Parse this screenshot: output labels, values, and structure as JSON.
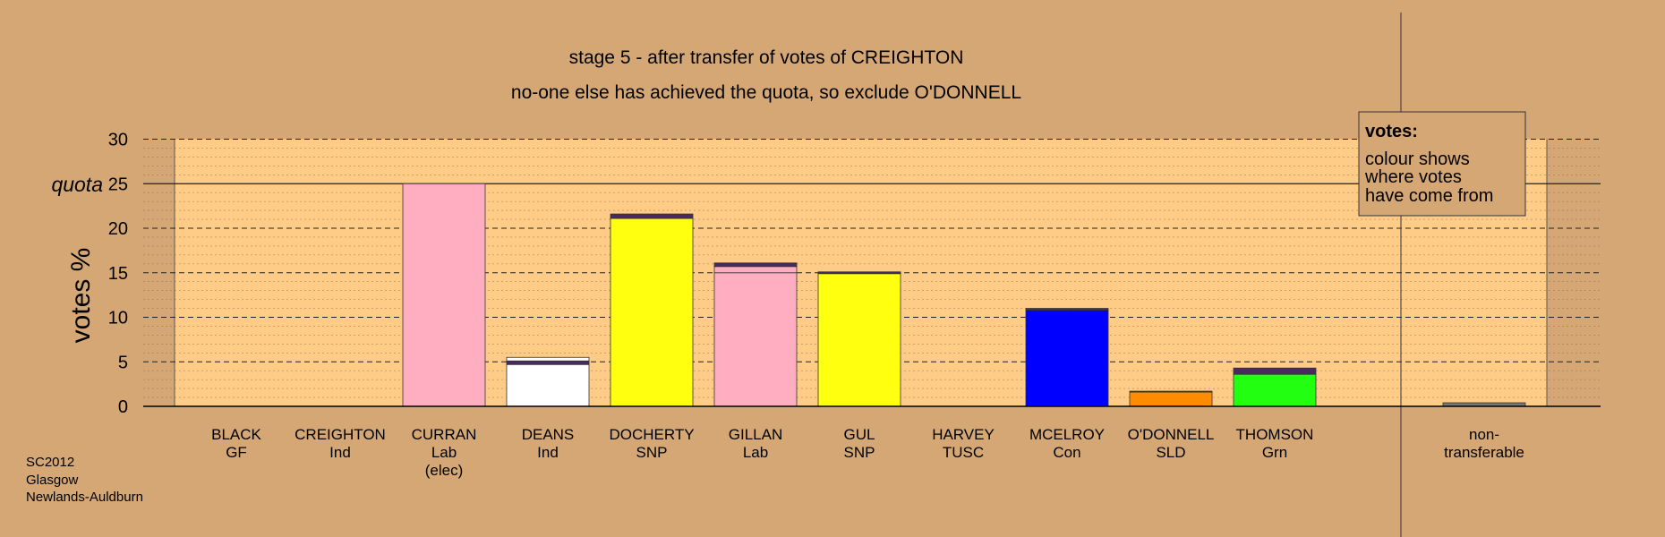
{
  "chart_data": {
    "type": "bar",
    "title": "stage 5 - after transfer of votes of CREIGHTON",
    "subtitle": "no-one else has achieved the quota, so exclude O'DONNELL",
    "ylabel": "votes %",
    "ylim": [
      0,
      30
    ],
    "yticks": [
      "0",
      "5",
      "10",
      "15",
      "20",
      "25",
      "30"
    ],
    "quota_label": "quota",
    "quota_value": 25,
    "grid": true,
    "candidates": [
      {
        "name": "BLACK",
        "party": "GF",
        "note": "",
        "segments": []
      },
      {
        "name": "CREIGHTON",
        "party": "Ind",
        "note": "",
        "segments": []
      },
      {
        "name": "CURRAN",
        "party": "Lab",
        "note": "(elec)",
        "segments": [
          {
            "color": "#ffadc0",
            "value": 25
          }
        ]
      },
      {
        "name": "DEANS",
        "party": "Ind",
        "note": "",
        "segments": [
          {
            "color": "#ffffff",
            "value": 4.7
          },
          {
            "color": "#4a2860",
            "value": 0.4
          },
          {
            "color": "#ffffff",
            "value": 0.4
          }
        ]
      },
      {
        "name": "DOCHERTY",
        "party": "SNP",
        "note": "",
        "segments": [
          {
            "color": "#ffff10",
            "value": 21.1
          },
          {
            "color": "#4a2860",
            "value": 0.5
          }
        ]
      },
      {
        "name": "GILLAN",
        "party": "Lab",
        "note": "",
        "segments": [
          {
            "color": "#ffadc0",
            "value": 15.0
          },
          {
            "color": "#ffadc0",
            "value": 0.7
          },
          {
            "color": "#4a2860",
            "value": 0.4
          }
        ]
      },
      {
        "name": "GUL",
        "party": "SNP",
        "note": "",
        "segments": [
          {
            "color": "#ffff10",
            "value": 14.9
          },
          {
            "color": "#4a2860",
            "value": 0.2
          }
        ]
      },
      {
        "name": "HARVEY",
        "party": "TUSC",
        "note": "",
        "segments": []
      },
      {
        "name": "MCELROY",
        "party": "Con",
        "note": "",
        "segments": [
          {
            "color": "#0000ff",
            "value": 10.8
          },
          {
            "color": "#4a2860",
            "value": 0.2
          }
        ]
      },
      {
        "name": "O'DONNELL",
        "party": "SLD",
        "note": "",
        "segments": [
          {
            "color": "#ff8c00",
            "value": 1.6
          },
          {
            "color": "#4a2860",
            "value": 0.1
          }
        ]
      },
      {
        "name": "THOMSON",
        "party": "Grn",
        "note": "",
        "segments": [
          {
            "color": "#22ff11",
            "value": 3.6
          },
          {
            "color": "#4a2860",
            "value": 0.7
          }
        ]
      }
    ],
    "nontransferable": {
      "label_1": "non-",
      "label_2": "transferable",
      "segments": [
        {
          "color": "#777777",
          "value": 0.4
        }
      ]
    }
  },
  "legend": {
    "heading": "votes:",
    "lines": [
      "colour shows",
      "where votes",
      "have come from"
    ]
  },
  "source": [
    "SC2012",
    "Glasgow",
    "Newlands-Auldburn"
  ],
  "colors": {
    "background": "#d4a775",
    "plot_area": "#ffcc88",
    "transfer": "#4a2860"
  }
}
